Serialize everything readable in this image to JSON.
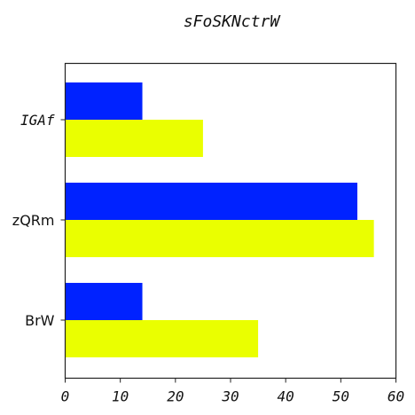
{
  "chart_data": {
    "type": "bar",
    "orientation": "horizontal",
    "title": "sFoSKNctrW",
    "categories": [
      "IGAf",
      "zQRm",
      "BrW"
    ],
    "series": [
      {
        "values": [
          14,
          53,
          14
        ],
        "color": "#0022ff"
      },
      {
        "values": [
          25,
          56,
          35
        ],
        "color": "#eaff00"
      }
    ],
    "xlim": [
      0,
      60
    ],
    "xticks": [
      0,
      10,
      20,
      30,
      40,
      50,
      60
    ],
    "xlabel": "",
    "ylabel": "",
    "grid": false,
    "legend": "none"
  }
}
